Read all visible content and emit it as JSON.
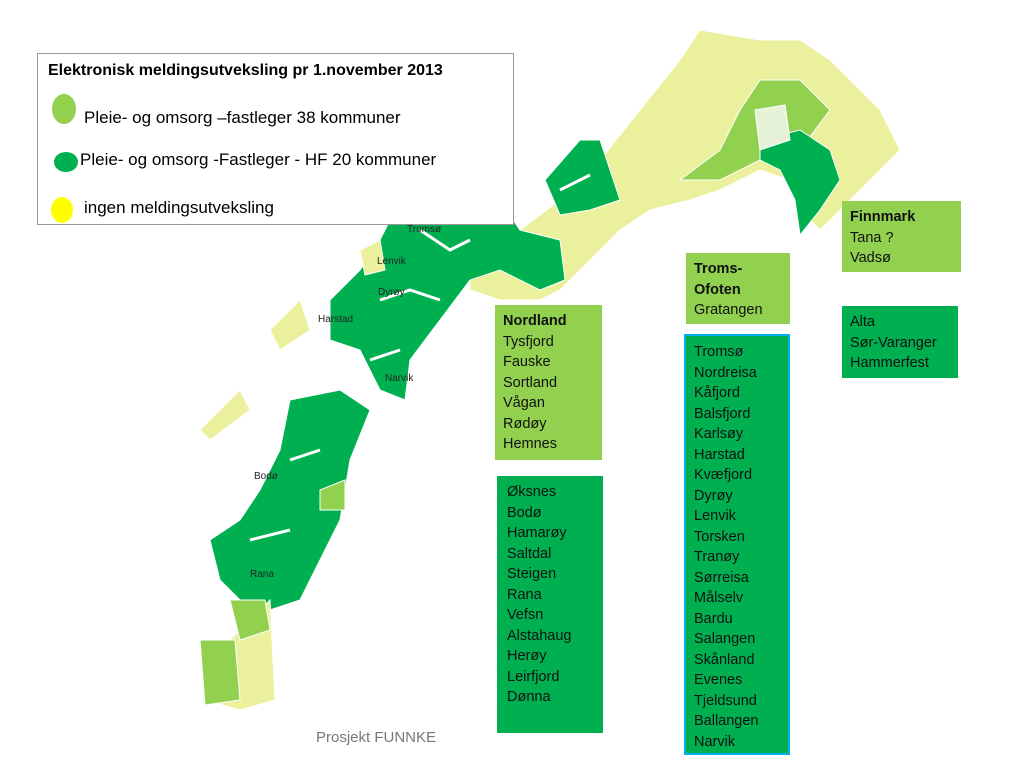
{
  "legend": {
    "title": "Elektronisk meldingsutveksling pr 1.november 2013",
    "items": [
      {
        "label": "Pleie- og omsorg –fastleger 38 kommuner",
        "color": "#92d050"
      },
      {
        "label": "Pleie- og omsorg -Fastleger - HF 20 kommuner",
        "color": "#00b050"
      },
      {
        "label": "ingen meldingsutveksling",
        "color": "#ffff00"
      }
    ]
  },
  "map_labels": [
    "Tromsø",
    "Lenvik",
    "Dyrøy",
    "Harstad",
    "Narvik",
    "Bodø",
    "Rana"
  ],
  "boxes": {
    "finnmark_light": {
      "heading": "Finnmark",
      "items": [
        "Tana ?",
        "Vadsø"
      ]
    },
    "finnmark_dark": {
      "items": [
        "Alta",
        "Sør-Varanger",
        "Hammerfest"
      ]
    },
    "troms_light": {
      "heading": "Troms-Ofoten",
      "items": [
        "Gratangen"
      ]
    },
    "troms_dark": {
      "items": [
        "Tromsø",
        "Nordreisa",
        "Kåfjord",
        "Balsfjord",
        "Karlsøy",
        "Harstad",
        "Kvæfjord",
        "Dyrøy",
        "Lenvik",
        "Torsken",
        "Tranøy",
        "Sørreisa",
        "Målselv",
        "Bardu",
        "Salangen",
        "Skånland",
        "Evenes",
        "Tjeldsund",
        "Ballangen",
        "Narvik"
      ]
    },
    "nordland_light": {
      "heading": "Nordland",
      "items": [
        "Tysfjord",
        "Fauske",
        "Sortland",
        "Vågan",
        "Rødøy",
        "Hemnes"
      ]
    },
    "nordland_dark": {
      "items": [
        "Øksnes",
        "Bodø",
        "Hamarøy",
        "Saltdal",
        "Steigen",
        "Rana",
        "Vefsn",
        "Alstahaug",
        "Herøy",
        "Leirfjord",
        "Dønna"
      ]
    }
  },
  "footer": "Prosjekt FUNNKE"
}
